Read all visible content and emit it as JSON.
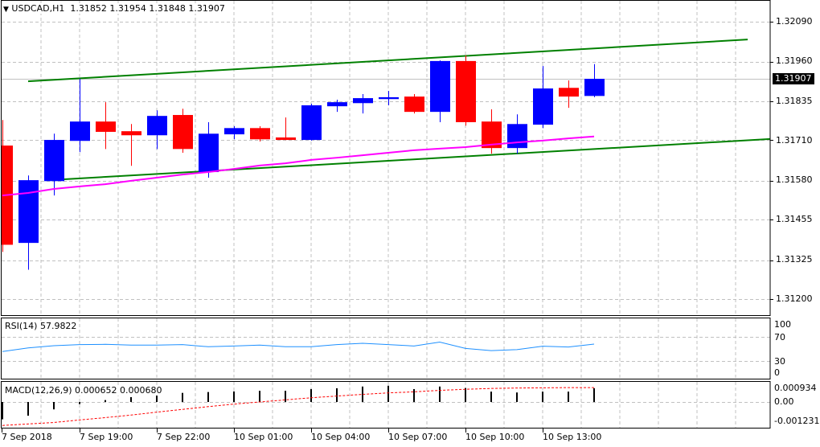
{
  "header": {
    "symbol": "USDCAD,H1",
    "open": "1.31852",
    "high": "1.31954",
    "low": "1.31848",
    "close": "1.31907"
  },
  "current_price_label": "1.31907",
  "colors": {
    "bull": "#0000ff",
    "bear": "#ff0000",
    "ma": "#ff00ff",
    "trend": "#008000",
    "rsi": "#1e90ff",
    "macd_hist": "#000000",
    "macd_signal": "#ff0000",
    "grid": "#c0c0c0"
  },
  "price_axis": [
    "1.32090",
    "1.31960",
    "1.31835",
    "1.31710",
    "1.31580",
    "1.31455",
    "1.31325",
    "1.31200"
  ],
  "time_axis": [
    "7 Sep 2018",
    "7 Sep 19:00",
    "7 Sep 22:00",
    "10 Sep 01:00",
    "10 Sep 04:00",
    "10 Sep 07:00",
    "10 Sep 10:00",
    "10 Sep 13:00"
  ],
  "rsi": {
    "title": "RSI(14) 57.9822",
    "levels": [
      "100",
      "70",
      "30",
      "0"
    ]
  },
  "macd": {
    "title": "MACD(12,26,9) 0.000652 0.000680",
    "levels": [
      "0.000934",
      "0.00",
      "-0.001231"
    ]
  },
  "chart_data": {
    "type": "candlestick",
    "title": "USDCAD,H1",
    "ylim": [
      1.3114,
      1.3212
    ],
    "candles": [
      {
        "t": "7 Sep 16:00",
        "o": 1.31693,
        "h": 1.31775,
        "l": 1.31352,
        "c": 1.31375
      },
      {
        "t": "7 Sep 17:00",
        "o": 1.31381,
        "h": 1.31597,
        "l": 1.31295,
        "c": 1.31582
      },
      {
        "t": "7 Sep 18:00",
        "o": 1.31579,
        "h": 1.31731,
        "l": 1.31533,
        "c": 1.31711
      },
      {
        "t": "7 Sep 19:00",
        "o": 1.31708,
        "h": 1.31907,
        "l": 1.31672,
        "c": 1.3177
      },
      {
        "t": "7 Sep 20:00",
        "o": 1.3177,
        "h": 1.31832,
        "l": 1.31682,
        "c": 1.31737
      },
      {
        "t": "7 Sep 21:00",
        "o": 1.31739,
        "h": 1.31762,
        "l": 1.31628,
        "c": 1.31726
      },
      {
        "t": "7 Sep 22:00",
        "o": 1.31726,
        "h": 1.31806,
        "l": 1.31682,
        "c": 1.31788
      },
      {
        "t": "7 Sep 23:00",
        "o": 1.31791,
        "h": 1.31811,
        "l": 1.3167,
        "c": 1.31682
      },
      {
        "t": "10 Sep 00:00",
        "o": 1.31608,
        "h": 1.31768,
        "l": 1.3159,
        "c": 1.31731
      },
      {
        "t": "10 Sep 01:00",
        "o": 1.31729,
        "h": 1.31755,
        "l": 1.31713,
        "c": 1.31749
      },
      {
        "t": "10 Sep 02:00",
        "o": 1.31749,
        "h": 1.31755,
        "l": 1.31706,
        "c": 1.31713
      },
      {
        "t": "10 Sep 03:00",
        "o": 1.31719,
        "h": 1.31783,
        "l": 1.31711,
        "c": 1.31711
      },
      {
        "t": "10 Sep 04:00",
        "o": 1.31711,
        "h": 1.31827,
        "l": 1.31709,
        "c": 1.31822
      },
      {
        "t": "10 Sep 05:00",
        "o": 1.31819,
        "h": 1.3184,
        "l": 1.31801,
        "c": 1.31832
      },
      {
        "t": "10 Sep 06:00",
        "o": 1.31829,
        "h": 1.31858,
        "l": 1.31796,
        "c": 1.31845
      },
      {
        "t": "10 Sep 07:00",
        "o": 1.31842,
        "h": 1.31868,
        "l": 1.31822,
        "c": 1.31848
      },
      {
        "t": "10 Sep 08:00",
        "o": 1.3185,
        "h": 1.31858,
        "l": 1.31796,
        "c": 1.31801
      },
      {
        "t": "10 Sep 09:00",
        "o": 1.31801,
        "h": 1.31966,
        "l": 1.31768,
        "c": 1.31964
      },
      {
        "t": "10 Sep 10:00",
        "o": 1.31964,
        "h": 1.31982,
        "l": 1.31757,
        "c": 1.31768
      },
      {
        "t": "10 Sep 11:00",
        "o": 1.3177,
        "h": 1.31809,
        "l": 1.31667,
        "c": 1.31685
      },
      {
        "t": "10 Sep 12:00",
        "o": 1.31685,
        "h": 1.31793,
        "l": 1.31667,
        "c": 1.31762
      },
      {
        "t": "10 Sep 13:00",
        "o": 1.3176,
        "h": 1.31948,
        "l": 1.31749,
        "c": 1.31876
      },
      {
        "t": "10 Sep 14:00",
        "o": 1.31878,
        "h": 1.31902,
        "l": 1.31814,
        "c": 1.3185
      },
      {
        "t": "10 Sep 15:00",
        "o": 1.31852,
        "h": 1.31954,
        "l": 1.31848,
        "c": 1.31907
      }
    ],
    "moving_average": [
      1.31533,
      1.31541,
      1.31554,
      1.31562,
      1.31569,
      1.3158,
      1.3159,
      1.316,
      1.31608,
      1.31618,
      1.31629,
      1.31636,
      1.31647,
      1.31654,
      1.31662,
      1.3167,
      1.31678,
      1.31683,
      1.31688,
      1.31696,
      1.31703,
      1.31709,
      1.31716,
      1.31722
    ],
    "trendlines": [
      {
        "name": "upper",
        "from": {
          "bar": 1,
          "price": 1.31899
        },
        "to": {
          "bar": 28.97,
          "price": 1.32033
        }
      },
      {
        "name": "lower",
        "from": {
          "bar": 1.78,
          "price": 1.31582
        },
        "to": {
          "bar": 31.7,
          "price": 1.31714
        }
      }
    ],
    "rsi_values": [
      45.6,
      51.7,
      55.3,
      57.1,
      57.6,
      56.3,
      56.3,
      57.1,
      53.6,
      54.9,
      56.3,
      53.6,
      53.6,
      57.1,
      59.3,
      57.2,
      54.9,
      61.3,
      50.8,
      47.2,
      48.9,
      54.5,
      53.1,
      57.98
    ],
    "rsi_ylim": [
      0,
      100
    ],
    "macd_hist": [
      -0.00082,
      -0.00065,
      -0.00035,
      -0.0001,
      9e-05,
      0.00023,
      0.00042,
      0.00043,
      0.00047,
      0.0005,
      0.00053,
      0.00053,
      0.00061,
      0.00065,
      0.00073,
      0.00077,
      0.00061,
      0.00073,
      0.00066,
      0.00049,
      0.00045,
      0.00049,
      0.00049,
      0.000652
    ],
    "macd_signal": [
      -0.00111,
      -0.00104,
      -0.00097,
      -0.00085,
      -0.00074,
      -0.00062,
      -0.00048,
      -0.00035,
      -0.00022,
      -0.0001,
      0.0,
      0.0001,
      0.0002,
      0.00028,
      0.00036,
      0.00043,
      0.00048,
      0.00055,
      0.0006,
      0.00064,
      0.00066,
      0.00067,
      0.00068,
      0.00068
    ],
    "macd_ylim": [
      -0.001231,
      0.000934
    ]
  }
}
